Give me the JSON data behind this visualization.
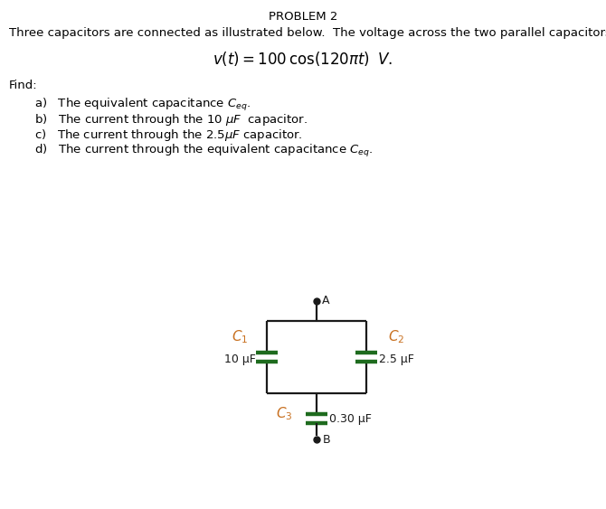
{
  "title": "PROBLEM 2",
  "background_color": "#ffffff",
  "text_color": "#000000",
  "circuit_color": "#1a1a1a",
  "cap_color": "#1e6b1e",
  "intro_text": "Three capacitors are connected as illustrated below.  The voltage across the two parallel capacitors is",
  "voltage_eq": "$v(t) = 100\\,\\cos(120\\pi t)\\;\\; V.$",
  "find_label": "Find:",
  "item_a": "a)   The equivalent capacitance $C_{eq}$.",
  "item_b": "b)   The current through the 10 $\\mu F$  capacitor.",
  "item_c": "c)   The current through the 2.5$\\mu F$ capacitor.",
  "item_d": "d)   The current through the equivalent capacitance $C_{eq}$.",
  "node_A_label": "A",
  "node_B_label": "B",
  "C1_label": "$\\mathit{C}_1$",
  "C1_value": "10 μF",
  "C2_label": "$\\mathit{C}_2$",
  "C2_value": "2.5 μF",
  "C3_label": "$\\mathit{C}_3$",
  "C3_value": "0.30 μF",
  "title_fontsize": 9.5,
  "body_fontsize": 9.5,
  "eq_fontsize": 12,
  "label_fontsize": 11
}
